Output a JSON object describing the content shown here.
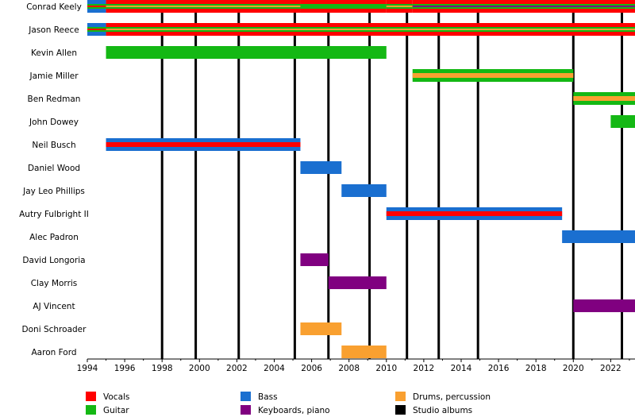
{
  "chart_data": {
    "type": "timeline",
    "xlim": [
      1994,
      2023.3
    ],
    "xticks": [
      1994,
      1996,
      1998,
      2000,
      2002,
      2004,
      2006,
      2008,
      2010,
      2012,
      2014,
      2016,
      2018,
      2020,
      2022
    ],
    "legend": [
      {
        "name": "Vocals",
        "color": "#ff0000"
      },
      {
        "name": "Guitar",
        "color": "#14b814"
      },
      {
        "name": "Bass",
        "color": "#1a6fd0"
      },
      {
        "name": "Keyboards, piano",
        "color": "#800080"
      },
      {
        "name": "Drums, percussion",
        "color": "#f9a030"
      },
      {
        "name": "Studio albums",
        "color": "#000000"
      }
    ],
    "albums": [
      1998,
      1999.8,
      2002.1,
      2005.1,
      2006.9,
      2009.1,
      2011.1,
      2012.8,
      2014.9,
      2020.0,
      2022.6
    ],
    "members": [
      {
        "name": "Conrad Keely",
        "periods": [
          {
            "start": 1994,
            "end": 1995,
            "roles": [
              2,
              1,
              0
            ]
          },
          {
            "start": 1995,
            "end": 2005.4,
            "roles": [
              0,
              1,
              4
            ]
          },
          {
            "start": 2005.4,
            "end": 2010,
            "roles": [
              0,
              1
            ]
          },
          {
            "start": 2010,
            "end": 2011.4,
            "roles": [
              0,
              1,
              4
            ]
          },
          {
            "start": 2011.4,
            "end": 2023.3,
            "roles": [
              0,
              1,
              3
            ]
          }
        ]
      },
      {
        "name": "Jason Reece",
        "periods": [
          {
            "start": 1994,
            "end": 1995,
            "roles": [
              2,
              1,
              0
            ]
          },
          {
            "start": 1995,
            "end": 2023.3,
            "roles": [
              0,
              1,
              4
            ]
          }
        ]
      },
      {
        "name": "Kevin Allen",
        "periods": [
          {
            "start": 1995,
            "end": 2010,
            "roles": [
              1
            ]
          }
        ]
      },
      {
        "name": "Jamie Miller",
        "periods": [
          {
            "start": 2011.4,
            "end": 2020,
            "roles": [
              1,
              4
            ]
          }
        ]
      },
      {
        "name": "Ben Redman",
        "periods": [
          {
            "start": 2020,
            "end": 2023.3,
            "roles": [
              1,
              4
            ]
          }
        ]
      },
      {
        "name": "John Dowey",
        "periods": [
          {
            "start": 2022,
            "end": 2023.3,
            "roles": [
              1
            ]
          }
        ]
      },
      {
        "name": "Neil Busch",
        "periods": [
          {
            "start": 1995,
            "end": 2005.4,
            "roles": [
              2,
              0
            ]
          }
        ]
      },
      {
        "name": "Daniel Wood",
        "periods": [
          {
            "start": 2005.4,
            "end": 2007.6,
            "roles": [
              2
            ]
          }
        ]
      },
      {
        "name": "Jay Leo Phillips",
        "periods": [
          {
            "start": 2007.6,
            "end": 2010,
            "roles": [
              2
            ]
          }
        ]
      },
      {
        "name": "Autry Fulbright II",
        "periods": [
          {
            "start": 2010,
            "end": 2019.4,
            "roles": [
              2,
              0
            ]
          }
        ]
      },
      {
        "name": "Alec Padron",
        "periods": [
          {
            "start": 2019.4,
            "end": 2023.3,
            "roles": [
              2
            ]
          }
        ]
      },
      {
        "name": "David Longoria",
        "periods": [
          {
            "start": 2005.4,
            "end": 2006.9,
            "roles": [
              3
            ]
          }
        ]
      },
      {
        "name": "Clay Morris",
        "periods": [
          {
            "start": 2006.9,
            "end": 2010,
            "roles": [
              3
            ]
          }
        ]
      },
      {
        "name": "AJ Vincent",
        "periods": [
          {
            "start": 2020,
            "end": 2023.3,
            "roles": [
              3
            ]
          }
        ]
      },
      {
        "name": "Doni Schroader",
        "periods": [
          {
            "start": 2005.4,
            "end": 2007.6,
            "roles": [
              4
            ]
          }
        ]
      },
      {
        "name": "Aaron Ford",
        "periods": [
          {
            "start": 2007.6,
            "end": 2010,
            "roles": [
              4
            ]
          }
        ]
      }
    ]
  }
}
